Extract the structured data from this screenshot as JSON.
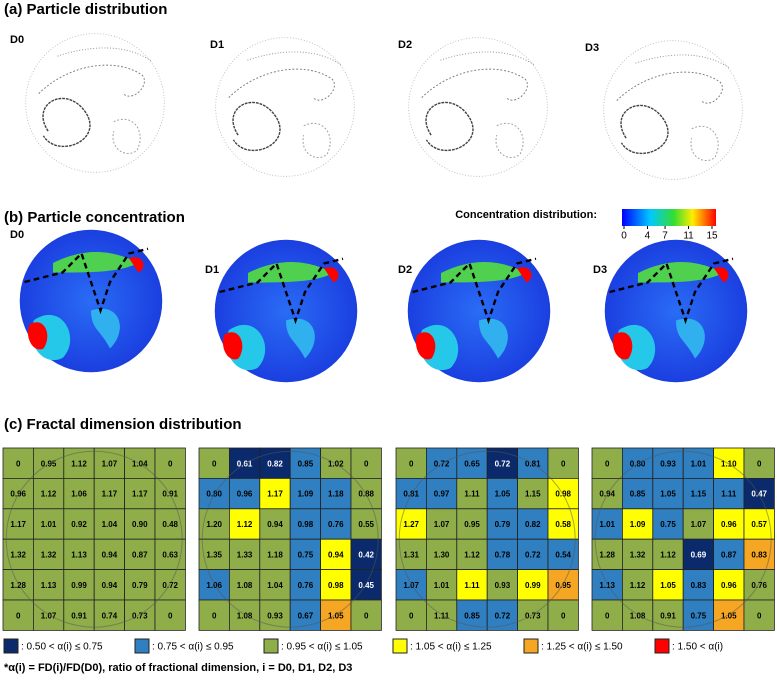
{
  "panel_a": {
    "title": "(a) Particle distribution",
    "labels": [
      "D0",
      "D1",
      "D2",
      "D3"
    ]
  },
  "panel_b": {
    "title": "(b) Particle concentration",
    "labels": [
      "D0",
      "D1",
      "D2",
      "D3"
    ],
    "colorbar": {
      "title": "Concentration distribution:",
      "lim": [
        0,
        15
      ],
      "ticks": [
        0,
        4,
        7,
        11,
        15
      ]
    }
  },
  "panel_c": {
    "title": "(c) Fractal dimension distribution",
    "legend": [
      {
        "color": "#0b2a6b",
        "label": ": 0.50 < α(i) ≤ 0.75"
      },
      {
        "color": "#2f7fc1",
        "label": ": 0.75 < α(i) ≤ 0.95"
      },
      {
        "color": "#8fae4a",
        "label": ": 0.95 < α(i) ≤ 1.05"
      },
      {
        "color": "#ffff00",
        "label": ": 1.05 < α(i) ≤ 1.25"
      },
      {
        "color": "#f5a623",
        "label": ": 1.25 < α(i) ≤ 1.50"
      },
      {
        "color": "#ff0000",
        "label": ": 1.50 < α(i)"
      }
    ],
    "grids": [
      {
        "values": [
          [
            "0",
            "0.95",
            "1.12",
            "1.07",
            "1.04",
            "0"
          ],
          [
            "0.96",
            "1.12",
            "1.06",
            "1.17",
            "1.17",
            "0.91"
          ],
          [
            "1.17",
            "1.01",
            "0.92",
            "1.04",
            "0.90",
            "0.48"
          ],
          [
            "1.32",
            "1.32",
            "1.13",
            "0.94",
            "0.87",
            "0.63"
          ],
          [
            "1.28",
            "1.13",
            "0.99",
            "0.94",
            "0.79",
            "0.72"
          ],
          [
            "0",
            "1.07",
            "0.91",
            "0.74",
            "0.73",
            "0"
          ]
        ],
        "classes": [
          [
            2,
            2,
            2,
            2,
            2,
            2
          ],
          [
            2,
            2,
            2,
            2,
            2,
            2
          ],
          [
            2,
            2,
            2,
            2,
            2,
            2
          ],
          [
            2,
            2,
            2,
            2,
            2,
            2
          ],
          [
            2,
            2,
            2,
            2,
            2,
            2
          ],
          [
            2,
            2,
            2,
            2,
            2,
            2
          ]
        ]
      },
      {
        "values": [
          [
            "0",
            "0.61",
            "0.82",
            "0.85",
            "1.02",
            "0"
          ],
          [
            "0.80",
            "0.96",
            "1.17",
            "1.09",
            "1.18",
            "0.88"
          ],
          [
            "1.20",
            "1.12",
            "0.94",
            "0.98",
            "0.76",
            "0.55"
          ],
          [
            "1.35",
            "1.33",
            "1.18",
            "0.75",
            "0.94",
            "0.42"
          ],
          [
            "1.06",
            "1.08",
            "1.04",
            "0.76",
            "0.98",
            "0.45"
          ],
          [
            "0",
            "1.08",
            "0.93",
            "0.67",
            "1.05",
            "0"
          ]
        ],
        "classes": [
          [
            2,
            0,
            0,
            1,
            2,
            2
          ],
          [
            1,
            1,
            3,
            1,
            1,
            2
          ],
          [
            2,
            3,
            2,
            1,
            1,
            2
          ],
          [
            2,
            2,
            2,
            1,
            3,
            0
          ],
          [
            1,
            2,
            2,
            1,
            3,
            0
          ],
          [
            2,
            2,
            2,
            1,
            4,
            2
          ]
        ]
      },
      {
        "values": [
          [
            "0",
            "0.72",
            "0.65",
            "0.72",
            "0.81",
            "0"
          ],
          [
            "0.81",
            "0.97",
            "1.11",
            "1.05",
            "1.15",
            "0.98"
          ],
          [
            "1.27",
            "1.07",
            "0.95",
            "0.79",
            "0.82",
            "0.58"
          ],
          [
            "1.31",
            "1.30",
            "1.12",
            "0.78",
            "0.72",
            "0.54"
          ],
          [
            "1.07",
            "1.01",
            "1.11",
            "0.93",
            "0.99",
            "0.95"
          ],
          [
            "0",
            "1.11",
            "0.85",
            "0.72",
            "0.73",
            "0"
          ]
        ],
        "classes": [
          [
            2,
            1,
            1,
            0,
            1,
            2
          ],
          [
            1,
            1,
            2,
            1,
            2,
            3
          ],
          [
            3,
            2,
            2,
            1,
            1,
            3
          ],
          [
            2,
            2,
            2,
            1,
            1,
            1
          ],
          [
            1,
            2,
            3,
            2,
            3,
            4
          ],
          [
            2,
            2,
            1,
            1,
            2,
            2
          ]
        ]
      },
      {
        "values": [
          [
            "0",
            "0.80",
            "0.93",
            "1.01",
            "1.10",
            "0"
          ],
          [
            "0.94",
            "0.85",
            "1.05",
            "1.15",
            "1.11",
            "0.47"
          ],
          [
            "1.01",
            "1.09",
            "0.75",
            "1.07",
            "0.96",
            "0.57"
          ],
          [
            "1.28",
            "1.32",
            "1.12",
            "0.69",
            "0.87",
            "0.83"
          ],
          [
            "1.13",
            "1.12",
            "1.05",
            "0.83",
            "0.96",
            "0.76"
          ],
          [
            "0",
            "1.08",
            "0.91",
            "0.75",
            "1.05",
            "0"
          ]
        ],
        "classes": [
          [
            2,
            1,
            1,
            1,
            3,
            2
          ],
          [
            2,
            1,
            1,
            1,
            1,
            0
          ],
          [
            1,
            3,
            1,
            2,
            3,
            3
          ],
          [
            2,
            2,
            2,
            0,
            1,
            4
          ],
          [
            1,
            2,
            3,
            1,
            3,
            2
          ],
          [
            2,
            2,
            2,
            1,
            4,
            2
          ]
        ]
      }
    ],
    "footnote": "*α(i) = FD(i)/FD(D0), ratio of fractional dimension, i = D0, D1, D2, D3"
  }
}
